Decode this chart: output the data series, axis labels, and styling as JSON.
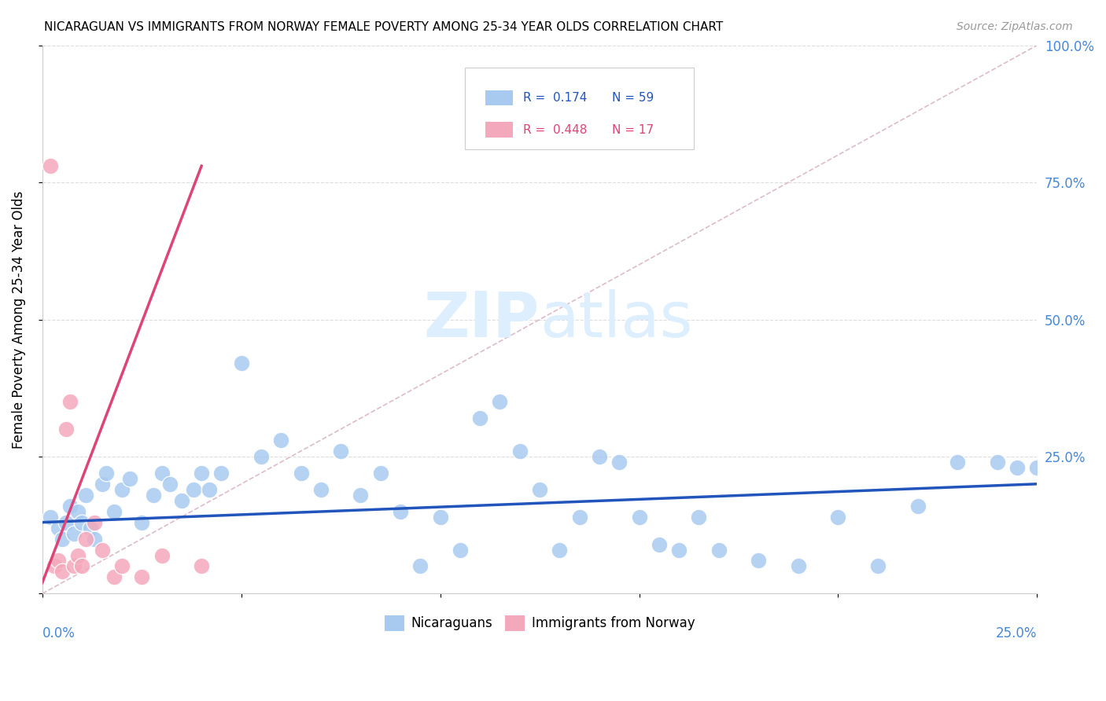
{
  "title": "NICARAGUAN VS IMMIGRANTS FROM NORWAY FEMALE POVERTY AMONG 25-34 YEAR OLDS CORRELATION CHART",
  "source": "Source: ZipAtlas.com",
  "ylabel": "Female Poverty Among 25-34 Year Olds",
  "xmin": 0.0,
  "xmax": 0.25,
  "ymin": 0.0,
  "ymax": 1.0,
  "yticks_right": [
    0.0,
    0.25,
    0.5,
    0.75,
    1.0
  ],
  "ytick_labels_right": [
    "",
    "25.0%",
    "50.0%",
    "75.0%",
    "100.0%"
  ],
  "xticks": [
    0.0,
    0.05,
    0.1,
    0.15,
    0.2,
    0.25
  ],
  "legend_blue_r": "0.174",
  "legend_blue_n": "59",
  "legend_pink_r": "0.448",
  "legend_pink_n": "17",
  "blue_color": "#a8caf0",
  "pink_color": "#f4a8bc",
  "blue_line_color": "#2255bb",
  "pink_line_color": "#dd4477",
  "ref_line_color": "#ddbbcc",
  "watermark_color": "#ddeeff",
  "blue_x": [
    0.002,
    0.004,
    0.005,
    0.006,
    0.007,
    0.008,
    0.009,
    0.01,
    0.011,
    0.012,
    0.013,
    0.015,
    0.016,
    0.018,
    0.02,
    0.022,
    0.025,
    0.028,
    0.03,
    0.032,
    0.035,
    0.038,
    0.04,
    0.042,
    0.045,
    0.05,
    0.055,
    0.06,
    0.065,
    0.07,
    0.075,
    0.08,
    0.085,
    0.09,
    0.095,
    0.1,
    0.105,
    0.11,
    0.115,
    0.12,
    0.125,
    0.13,
    0.135,
    0.14,
    0.145,
    0.15,
    0.155,
    0.16,
    0.165,
    0.17,
    0.18,
    0.19,
    0.2,
    0.21,
    0.22,
    0.23,
    0.24,
    0.245,
    0.25
  ],
  "blue_y": [
    0.14,
    0.12,
    0.1,
    0.13,
    0.16,
    0.11,
    0.15,
    0.13,
    0.18,
    0.12,
    0.1,
    0.2,
    0.22,
    0.15,
    0.19,
    0.21,
    0.13,
    0.18,
    0.22,
    0.2,
    0.17,
    0.19,
    0.22,
    0.19,
    0.22,
    0.42,
    0.25,
    0.28,
    0.22,
    0.19,
    0.26,
    0.18,
    0.22,
    0.15,
    0.05,
    0.14,
    0.08,
    0.32,
    0.35,
    0.26,
    0.19,
    0.08,
    0.14,
    0.25,
    0.24,
    0.14,
    0.09,
    0.08,
    0.14,
    0.08,
    0.06,
    0.05,
    0.14,
    0.05,
    0.16,
    0.24,
    0.24,
    0.23,
    0.23
  ],
  "pink_x": [
    0.002,
    0.003,
    0.004,
    0.005,
    0.006,
    0.007,
    0.008,
    0.009,
    0.01,
    0.011,
    0.013,
    0.015,
    0.018,
    0.02,
    0.025,
    0.03,
    0.04
  ],
  "pink_y": [
    0.78,
    0.05,
    0.06,
    0.04,
    0.3,
    0.35,
    0.05,
    0.07,
    0.05,
    0.1,
    0.13,
    0.08,
    0.03,
    0.05,
    0.03,
    0.07,
    0.05
  ],
  "blue_trend_x": [
    0.0,
    0.25
  ],
  "blue_trend_y": [
    0.13,
    0.2
  ],
  "pink_trend_x": [
    0.0,
    0.04
  ],
  "pink_trend_y": [
    0.02,
    0.78
  ]
}
